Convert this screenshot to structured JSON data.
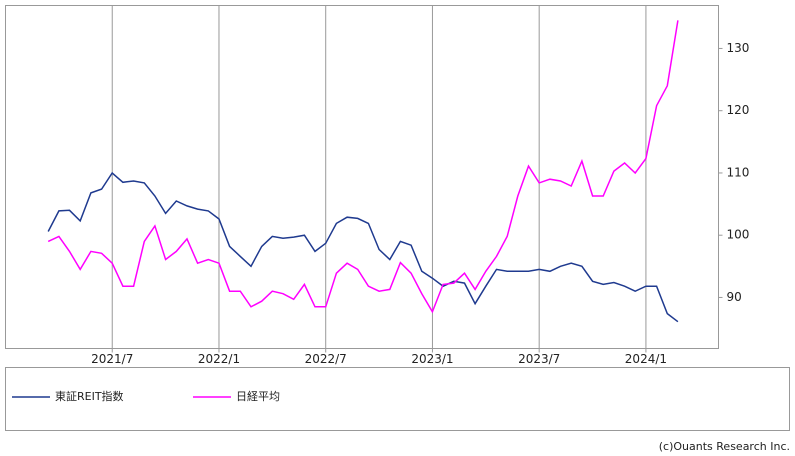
{
  "chart_data": {
    "type": "line",
    "x": [
      2021.2,
      2021.25,
      2021.3,
      2021.35,
      2021.4,
      2021.45,
      2021.5,
      2021.55,
      2021.6,
      2021.65,
      2021.7,
      2021.75,
      2021.8,
      2021.85,
      2021.9,
      2021.95,
      2022.0,
      2022.05,
      2022.1,
      2022.15,
      2022.2,
      2022.25,
      2022.3,
      2022.35,
      2022.4,
      2022.45,
      2022.5,
      2022.55,
      2022.6,
      2022.65,
      2022.7,
      2022.75,
      2022.8,
      2022.85,
      2022.9,
      2022.95,
      2023.0,
      2023.05,
      2023.1,
      2023.15,
      2023.2,
      2023.25,
      2023.3,
      2023.35,
      2023.4,
      2023.45,
      2023.5,
      2023.55,
      2023.6,
      2023.65,
      2023.7,
      2023.75,
      2023.8,
      2023.85,
      2023.9,
      2023.95,
      2024.0,
      2024.05,
      2024.1,
      2024.15
    ],
    "series": [
      {
        "name": "東証REIT指数",
        "color": "#1f3a8f",
        "values": [
          100.6,
          103.9,
          104.0,
          102.3,
          106.8,
          107.4,
          110.0,
          108.5,
          108.7,
          108.4,
          106.3,
          103.5,
          105.5,
          104.7,
          104.2,
          103.9,
          102.6,
          98.2,
          96.6,
          95.0,
          98.2,
          99.8,
          99.5,
          99.7,
          100.0,
          97.4,
          98.7,
          101.9,
          102.9,
          102.7,
          101.9,
          97.7,
          96.1,
          99.0,
          98.4,
          94.2,
          93.1,
          91.8,
          92.6,
          92.3,
          89.0,
          91.8,
          94.5,
          94.2,
          94.2,
          94.2,
          94.5,
          94.2,
          95.0,
          95.5,
          95.0,
          92.6,
          92.1,
          92.4,
          91.8,
          91.0,
          91.8,
          91.8,
          87.4,
          86.1
        ]
      },
      {
        "name": "日経平均",
        "color": "#ff00ff",
        "values": [
          99.0,
          99.8,
          97.4,
          94.5,
          97.4,
          97.1,
          95.5,
          91.8,
          91.8,
          99.0,
          101.5,
          96.1,
          97.4,
          99.4,
          95.5,
          96.1,
          95.5,
          91.0,
          91.0,
          88.5,
          89.4,
          91.0,
          90.6,
          89.7,
          92.1,
          88.5,
          88.5,
          93.9,
          95.5,
          94.5,
          91.8,
          91.0,
          91.3,
          95.6,
          93.9,
          90.6,
          87.7,
          92.1,
          92.3,
          93.9,
          91.3,
          94.2,
          96.6,
          99.8,
          106.3,
          111.1,
          108.4,
          109.0,
          108.7,
          107.9,
          111.9,
          106.3,
          106.3,
          110.3,
          111.6,
          110.0,
          112.3,
          120.8,
          124.0,
          134.5
        ]
      }
    ],
    "xlim": [
      2021.0,
      2024.34
    ],
    "xticks": [
      {
        "value": 2021.5,
        "label": "2021/7"
      },
      {
        "value": 2022.0,
        "label": "2022/1"
      },
      {
        "value": 2022.5,
        "label": "2022/7"
      },
      {
        "value": 2023.0,
        "label": "2023/1"
      },
      {
        "value": 2023.5,
        "label": "2023/7"
      },
      {
        "value": 2024.0,
        "label": "2024/1"
      }
    ],
    "ylim": [
      81.8,
      136.9
    ],
    "yticks": [
      90,
      100,
      110,
      120,
      130
    ],
    "grid": "x",
    "credit": "(c)Ouants Research Inc."
  }
}
